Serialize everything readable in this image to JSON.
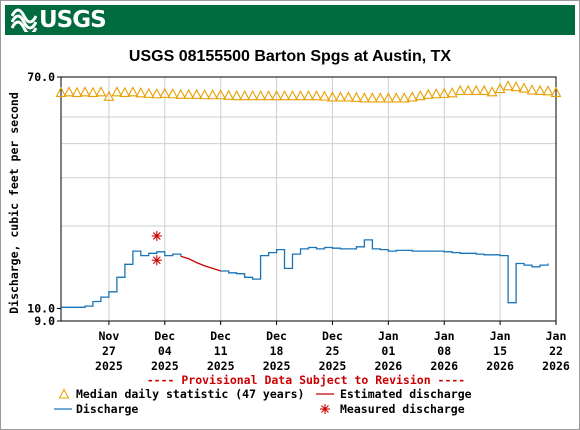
{
  "header": {
    "logo_text": "USGS",
    "logo_icon": "usgs-wave-logo"
  },
  "chart_data": {
    "type": "line",
    "title": "USGS 08155500 Barton Spgs at Austin, TX",
    "ylabel": "Discharge, cubic feet per second",
    "xlabel": "",
    "y_scale": "log",
    "ylim": [
      9.0,
      70.0
    ],
    "y_ticks": [
      {
        "value": 9.0,
        "label": "9.0"
      },
      {
        "value": 10.0,
        "label": "10.0"
      },
      {
        "value": 70.0,
        "label": "70.0"
      }
    ],
    "y_gridlines": [
      20,
      30,
      40,
      50
    ],
    "xlim": [
      "2025-11-21",
      "2026-01-22"
    ],
    "x_ticks": [
      {
        "date": "2025-11-27",
        "line1": "Nov",
        "line2": "27",
        "line3": "2025"
      },
      {
        "date": "2025-12-04",
        "line1": "Dec",
        "line2": "04",
        "line3": "2025"
      },
      {
        "date": "2025-12-11",
        "line1": "Dec",
        "line2": "11",
        "line3": "2025"
      },
      {
        "date": "2025-12-18",
        "line1": "Dec",
        "line2": "18",
        "line3": "2025"
      },
      {
        "date": "2025-12-25",
        "line1": "Dec",
        "line2": "25",
        "line3": "2025"
      },
      {
        "date": "2026-01-01",
        "line1": "Jan",
        "line2": "01",
        "line3": "2026"
      },
      {
        "date": "2026-01-08",
        "line1": "Jan",
        "line2": "08",
        "line3": "2026"
      },
      {
        "date": "2026-01-15",
        "line1": "Jan",
        "line2": "15",
        "line3": "2026"
      },
      {
        "date": "2026-01-22",
        "line1": "Jan",
        "line2": "22",
        "line3": "2026"
      }
    ],
    "grid": true,
    "provisional_note": "---- Provisional Data Subject to Revision ----",
    "legend": [
      {
        "key": "median",
        "label": "Median daily statistic (47 years)"
      },
      {
        "key": "estimated",
        "label": "Estimated discharge"
      },
      {
        "key": "discharge",
        "label": "Discharge"
      },
      {
        "key": "measured",
        "label": "Measured discharge"
      }
    ],
    "colors": {
      "median": "#e8a000",
      "discharge": "#1a74b8",
      "estimated": "#cc0000",
      "measured": "#cc0000",
      "grid": "#cfcfcf",
      "axis": "#000000"
    },
    "series": {
      "discharge": [
        [
          "2025-11-21",
          10.1
        ],
        [
          "2025-11-22",
          10.1
        ],
        [
          "2025-11-23",
          10.1
        ],
        [
          "2025-11-24",
          10.2
        ],
        [
          "2025-11-25",
          10.6
        ],
        [
          "2025-11-26",
          11.0
        ],
        [
          "2025-11-27",
          11.5
        ],
        [
          "2025-11-28",
          13.0
        ],
        [
          "2025-11-29",
          14.5
        ],
        [
          "2025-11-30",
          16.2
        ],
        [
          "2025-12-01",
          15.6
        ],
        [
          "2025-12-02",
          15.9
        ],
        [
          "2025-12-03",
          16.1
        ],
        [
          "2025-12-04",
          15.6
        ],
        [
          "2025-12-05",
          15.8
        ],
        [
          "2025-12-06",
          15.5
        ]
      ],
      "estimated": [
        [
          "2025-12-06",
          15.5
        ],
        [
          "2025-12-07",
          15.2
        ],
        [
          "2025-12-08",
          14.7
        ],
        [
          "2025-12-09",
          14.3
        ],
        [
          "2025-12-10",
          14.0
        ],
        [
          "2025-12-11",
          13.7
        ]
      ],
      "discharge_2": [
        [
          "2025-12-11",
          13.7
        ],
        [
          "2025-12-12",
          13.5
        ],
        [
          "2025-12-13",
          13.4
        ],
        [
          "2025-12-14",
          13.0
        ],
        [
          "2025-12-15",
          12.8
        ],
        [
          "2025-12-16",
          15.6
        ],
        [
          "2025-12-17",
          16.0
        ],
        [
          "2025-12-18",
          16.4
        ],
        [
          "2025-12-19",
          14.0
        ],
        [
          "2025-12-20",
          15.8
        ],
        [
          "2025-12-21",
          16.5
        ],
        [
          "2025-12-22",
          16.7
        ],
        [
          "2025-12-23",
          16.5
        ],
        [
          "2025-12-24",
          16.7
        ],
        [
          "2025-12-25",
          16.6
        ],
        [
          "2025-12-26",
          16.5
        ],
        [
          "2025-12-27",
          16.5
        ],
        [
          "2025-12-28",
          16.8
        ],
        [
          "2025-12-29",
          17.8
        ],
        [
          "2025-12-30",
          16.5
        ],
        [
          "2025-12-31",
          16.4
        ],
        [
          "2026-01-01",
          16.2
        ],
        [
          "2026-01-02",
          16.3
        ],
        [
          "2026-01-03",
          16.3
        ],
        [
          "2026-01-04",
          16.2
        ],
        [
          "2026-01-05",
          16.2
        ],
        [
          "2026-01-06",
          16.2
        ],
        [
          "2026-01-07",
          16.2
        ],
        [
          "2026-01-08",
          16.1
        ],
        [
          "2026-01-09",
          16.0
        ],
        [
          "2026-01-10",
          15.9
        ],
        [
          "2026-01-11",
          15.9
        ],
        [
          "2026-01-12",
          15.8
        ],
        [
          "2026-01-13",
          15.7
        ],
        [
          "2026-01-14",
          15.7
        ],
        [
          "2026-01-15",
          15.6
        ],
        [
          "2026-01-16",
          10.5
        ],
        [
          "2026-01-17",
          14.6
        ],
        [
          "2026-01-18",
          14.4
        ],
        [
          "2026-01-19",
          14.2
        ],
        [
          "2026-01-20",
          14.4
        ],
        [
          "2026-01-21",
          14.6
        ]
      ],
      "median": [
        [
          "2025-11-21",
          61.5
        ],
        [
          "2025-11-22",
          61.8
        ],
        [
          "2025-11-23",
          61.5
        ],
        [
          "2025-11-24",
          61.8
        ],
        [
          "2025-11-25",
          61.5
        ],
        [
          "2025-11-26",
          61.8
        ],
        [
          "2025-11-27",
          59.5
        ],
        [
          "2025-11-28",
          61.8
        ],
        [
          "2025-11-29",
          61.5
        ],
        [
          "2025-11-30",
          61.8
        ],
        [
          "2025-12-01",
          61.3
        ],
        [
          "2025-12-02",
          61.0
        ],
        [
          "2025-12-03",
          60.8
        ],
        [
          "2025-12-04",
          61.0
        ],
        [
          "2025-12-05",
          60.8
        ],
        [
          "2025-12-06",
          60.5
        ],
        [
          "2025-12-07",
          60.5
        ],
        [
          "2025-12-08",
          60.5
        ],
        [
          "2025-12-09",
          60.3
        ],
        [
          "2025-12-10",
          60.3
        ],
        [
          "2025-12-11",
          60.3
        ],
        [
          "2025-12-12",
          60.0
        ],
        [
          "2025-12-13",
          59.8
        ],
        [
          "2025-12-14",
          59.8
        ],
        [
          "2025-12-15",
          59.8
        ],
        [
          "2025-12-16",
          59.8
        ],
        [
          "2025-12-17",
          59.8
        ],
        [
          "2025-12-18",
          59.8
        ],
        [
          "2025-12-19",
          59.8
        ],
        [
          "2025-12-20",
          59.8
        ],
        [
          "2025-12-21",
          59.8
        ],
        [
          "2025-12-22",
          59.8
        ],
        [
          "2025-12-23",
          59.8
        ],
        [
          "2025-12-24",
          59.6
        ],
        [
          "2025-12-25",
          59.2
        ],
        [
          "2025-12-26",
          59.2
        ],
        [
          "2025-12-27",
          59.2
        ],
        [
          "2025-12-28",
          59.0
        ],
        [
          "2025-12-29",
          58.7
        ],
        [
          "2025-12-30",
          58.7
        ],
        [
          "2025-12-31",
          58.7
        ],
        [
          "2026-01-01",
          58.7
        ],
        [
          "2026-01-02",
          58.7
        ],
        [
          "2026-01-03",
          58.7
        ],
        [
          "2026-01-04",
          59.2
        ],
        [
          "2026-01-05",
          59.8
        ],
        [
          "2026-01-06",
          60.5
        ],
        [
          "2026-01-07",
          60.8
        ],
        [
          "2026-01-08",
          61.0
        ],
        [
          "2026-01-09",
          61.3
        ],
        [
          "2026-01-10",
          62.5
        ],
        [
          "2026-01-11",
          62.5
        ],
        [
          "2026-01-12",
          62.5
        ],
        [
          "2026-01-13",
          62.5
        ],
        [
          "2026-01-14",
          61.8
        ],
        [
          "2026-01-15",
          63.5
        ],
        [
          "2026-01-16",
          65.0
        ],
        [
          "2026-01-17",
          64.5
        ],
        [
          "2026-01-18",
          63.8
        ],
        [
          "2026-01-19",
          62.8
        ],
        [
          "2026-01-20",
          62.5
        ],
        [
          "2026-01-21",
          62.3
        ],
        [
          "2026-01-22",
          61.5
        ]
      ],
      "measured": [
        [
          "2025-12-03",
          18.4
        ],
        [
          "2025-12-03",
          15.0
        ]
      ]
    }
  }
}
